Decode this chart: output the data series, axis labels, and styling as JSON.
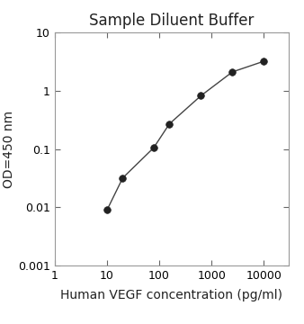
{
  "title": "Sample Diluent Buffer",
  "xlabel": "Human VEGF concentration (pg/ml)",
  "ylabel": "OD=450 nm",
  "x_data": [
    10,
    20,
    78,
    156,
    625,
    2500,
    10000
  ],
  "y_data": [
    0.009,
    0.032,
    0.105,
    0.27,
    0.82,
    2.1,
    3.2
  ],
  "xlim": [
    1,
    30000
  ],
  "ylim": [
    0.001,
    10
  ],
  "xticks": [
    1,
    10,
    100,
    1000,
    10000
  ],
  "xtick_labels": [
    "1",
    "10",
    "100",
    "1000",
    "10000"
  ],
  "yticks": [
    0.001,
    0.01,
    0.1,
    1,
    10
  ],
  "ytick_labels": [
    "0.001",
    "0.01",
    "0.1",
    "1",
    "10"
  ],
  "line_color": "#444444",
  "marker_color": "#222222",
  "marker_size": 5.5,
  "title_fontsize": 12,
  "label_fontsize": 10,
  "tick_fontsize": 9,
  "background_color": "#ffffff"
}
